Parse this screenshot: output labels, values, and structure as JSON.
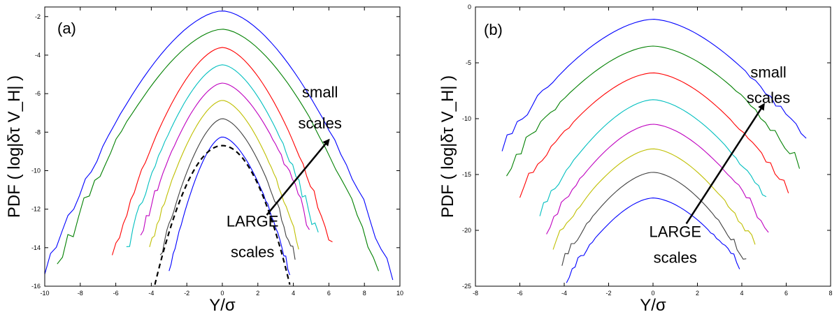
{
  "chart_data": [
    {
      "type": "line",
      "panel_label": "(a)",
      "xlabel": "Y/σ",
      "ylabel": "PDF ( log|δτ V_H| )",
      "xlim": [
        -10,
        10
      ],
      "ylim": [
        -16,
        -1.5
      ],
      "xticks": [
        -10,
        -8,
        -6,
        -4,
        -2,
        0,
        2,
        4,
        6,
        8,
        10
      ],
      "yticks": [
        -16,
        -14,
        -12,
        -10,
        -8,
        -6,
        -4,
        -2
      ],
      "grid": false,
      "series": [
        {
          "color": "#0000ff",
          "peak": -1.7,
          "width": 9.6,
          "ends": [
            [
              -10,
              -15.5
            ],
            [
              9.6,
              -15.5
            ]
          ]
        },
        {
          "color": "#008000",
          "peak": -2.65,
          "width": 8.4,
          "ends": [
            [
              -9.3,
              -15.0
            ],
            [
              8.8,
              -15.0
            ]
          ]
        },
        {
          "color": "#ff0000",
          "peak": -3.6,
          "width": 6.7,
          "ends": [
            [
              -6.2,
              -14.5
            ],
            [
              6.2,
              -13.9
            ]
          ]
        },
        {
          "color": "#00bfbf",
          "peak": -4.5,
          "width": 5.4,
          "ends": [
            [
              -5.4,
              -14.1
            ],
            [
              5.4,
              -13.5
            ]
          ]
        },
        {
          "color": "#bf00bf",
          "peak": -5.45,
          "width": 4.8,
          "ends": [
            [
              -4.6,
              -13.5
            ],
            [
              4.9,
              -12.8
            ]
          ]
        },
        {
          "color": "#bfbf00",
          "peak": -6.35,
          "width": 4.6,
          "ends": [
            [
              -4.1,
              -14.1
            ],
            [
              4.3,
              -13.8
            ]
          ]
        },
        {
          "color": "#404040",
          "peak": -7.3,
          "width": 4.2,
          "ends": [
            [
              -3.5,
              -14.5
            ],
            [
              4.1,
              -14.6
            ]
          ]
        },
        {
          "color": "#0000ff",
          "peak": -8.25,
          "width": 4.0,
          "ends": [
            [
              -3.0,
              -15.3
            ],
            [
              3.8,
              -15.2
            ]
          ]
        }
      ],
      "reference_curve": {
        "style": "dashed",
        "color": "#000000",
        "peak": -8.7,
        "x_range": [
          -3.8,
          3.8
        ]
      },
      "annotations": [
        {
          "text": "small",
          "x": 5.5,
          "y": -6.2
        },
        {
          "text": "scales",
          "x": 5.5,
          "y": -7.8
        },
        {
          "text": "LARGE",
          "x": 1.7,
          "y": -12.9
        },
        {
          "text": "scales",
          "x": 1.7,
          "y": -14.5
        }
      ],
      "arrow": {
        "from": [
          2.5,
          -12.3
        ],
        "to": [
          6.0,
          -8.4
        ]
      }
    },
    {
      "type": "line",
      "panel_label": "(b)",
      "xlabel": "Y/σ",
      "ylabel": "PDF ( log|δτ V_H| )",
      "xlim": [
        -8,
        8
      ],
      "ylim": [
        -25,
        0
      ],
      "xticks": [
        -8,
        -6,
        -4,
        -2,
        0,
        2,
        4,
        6,
        8
      ],
      "yticks": [
        -25,
        -20,
        -15,
        -10,
        -5,
        0
      ],
      "grid": false,
      "series": [
        {
          "color": "#0000ff",
          "peak": -1.1,
          "width": 6.9,
          "ends": [
            [
              -6.8,
              -12.3
            ],
            [
              6.9,
              -12.1
            ]
          ]
        },
        {
          "color": "#008000",
          "peak": -3.5,
          "width": 6.5,
          "ends": [
            [
              -6.6,
              -14.5
            ],
            [
              6.6,
              -14.0
            ]
          ]
        },
        {
          "color": "#ff0000",
          "peak": -5.9,
          "width": 6.1,
          "ends": [
            [
              -6.0,
              -16.5
            ],
            [
              6.1,
              -16.7
            ]
          ]
        },
        {
          "color": "#00bfbf",
          "peak": -8.3,
          "width": 5.8,
          "ends": [
            [
              -5.1,
              -18.3
            ],
            [
              5.1,
              -17.1
            ]
          ]
        },
        {
          "color": "#bf00bf",
          "peak": -10.5,
          "width": 5.3,
          "ends": [
            [
              -4.8,
              -19.9
            ],
            [
              5.2,
              -19.9
            ]
          ]
        },
        {
          "color": "#bfbf00",
          "peak": -12.7,
          "width": 5.0,
          "ends": [
            [
              -4.5,
              -21.3
            ],
            [
              4.6,
              -21.3
            ]
          ]
        },
        {
          "color": "#404040",
          "peak": -14.8,
          "width": 4.7,
          "ends": [
            [
              -4.1,
              -22.8
            ],
            [
              4.2,
              -22.7
            ]
          ]
        },
        {
          "color": "#0000ff",
          "peak": -17.1,
          "width": 4.3,
          "ends": [
            [
              -3.9,
              -24.3
            ],
            [
              3.9,
              -23.2
            ]
          ]
        }
      ],
      "annotations": [
        {
          "text": "small",
          "x": 5.2,
          "y": -6.3
        },
        {
          "text": "scales",
          "x": 5.2,
          "y": -8.6
        },
        {
          "text": "LARGE",
          "x": 1.0,
          "y": -20.6
        },
        {
          "text": "scales",
          "x": 1.0,
          "y": -22.9
        }
      ],
      "arrow": {
        "from": [
          1.5,
          -19.4
        ],
        "to": [
          5.0,
          -8.7
        ]
      }
    }
  ]
}
